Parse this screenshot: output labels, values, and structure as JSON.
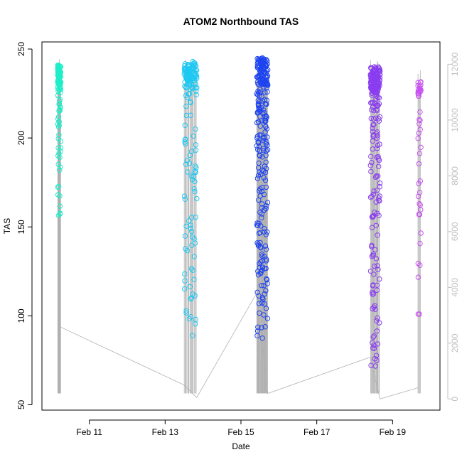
{
  "chart_data": {
    "type": "scatter",
    "title": "ATOM2 Northbound TAS",
    "xlabel": "Date",
    "ylabel": "TAS",
    "x_axis": {
      "type": "date",
      "range": [
        "2022-02-09T18:00",
        "2022-02-20T06:00"
      ],
      "ticks": [
        {
          "value": "2022-02-11T00:00",
          "label": "Feb 11"
        },
        {
          "value": "2022-02-13T00:00",
          "label": "Feb 13"
        },
        {
          "value": "2022-02-15T00:00",
          "label": "Feb 15"
        },
        {
          "value": "2022-02-17T00:00",
          "label": "Feb 17"
        },
        {
          "value": "2022-02-19T00:00",
          "label": "Feb 19"
        }
      ]
    },
    "y_axis_left": {
      "range": [
        47,
        254
      ],
      "ticks": [
        50,
        100,
        150,
        200,
        250
      ]
    },
    "y_axis_right": {
      "range": [
        -400,
        12800
      ],
      "ticks": [
        0,
        2000,
        4000,
        6000,
        8000,
        10000,
        12000
      ],
      "color": "#c0c0c0"
    },
    "point_series": [
      {
        "start": "2022-02-10T04:00",
        "end": "2022-02-10T06:00",
        "color": "#1eeec8",
        "count": 110,
        "dense_low": 228,
        "dense_high": 241,
        "sparse_low": 146,
        "sparse_high": 232,
        "dense_fraction": 0.55,
        "seed": 11
      },
      {
        "start": "2022-02-13T12:00",
        "end": "2022-02-13T20:00",
        "color": "#1ec8f2",
        "count": 160,
        "dense_low": 228,
        "dense_high": 243,
        "sparse_low": 77,
        "sparse_high": 230,
        "dense_fraction": 0.55,
        "seed": 23
      },
      {
        "start": "2022-02-15T10:00",
        "end": "2022-02-15T17:00",
        "color": "#1e44f0",
        "count": 280,
        "dense_low": 230,
        "dense_high": 245,
        "sparse_low": 80,
        "sparse_high": 232,
        "dense_fraction": 0.4,
        "seed": 37
      },
      {
        "start": "2022-02-18T10:00",
        "end": "2022-02-18T16:00",
        "color": "#8a3cf0",
        "count": 240,
        "dense_low": 225,
        "dense_high": 240,
        "sparse_low": 55,
        "sparse_high": 232,
        "dense_fraction": 0.45,
        "seed": 53
      },
      {
        "start": "2022-02-19T16:00",
        "end": "2022-02-19T18:00",
        "color": "#c850f0",
        "count": 45,
        "dense_low": 225,
        "dense_high": 233,
        "sparse_low": 92,
        "sparse_high": 228,
        "dense_fraction": 0.3,
        "seed": 71
      }
    ],
    "altitude_series": {
      "color": "#b0b0b0",
      "connectors": [
        {
          "x": "2022-02-10T05:00",
          "y": 2600
        },
        {
          "x": "2022-02-13T12:00",
          "y": 500
        },
        {
          "x": "2022-02-13T20:00",
          "y": 50
        },
        {
          "x": "2022-02-15T10:00",
          "y": 3800
        },
        {
          "x": "2022-02-15T17:00",
          "y": 200
        },
        {
          "x": "2022-02-18T10:00",
          "y": 1500
        },
        {
          "x": "2022-02-18T16:00",
          "y": 0
        },
        {
          "x": "2022-02-19T16:00",
          "y": 400
        }
      ],
      "flights": [
        {
          "start": "2022-02-10T04:00",
          "end": "2022-02-10T06:00",
          "count": 12
        },
        {
          "start": "2022-02-13T12:00",
          "end": "2022-02-13T20:00",
          "count": 14
        },
        {
          "start": "2022-02-15T10:00",
          "end": "2022-02-15T17:00",
          "count": 24
        },
        {
          "start": "2022-02-18T10:00",
          "end": "2022-02-18T16:00",
          "count": 14
        },
        {
          "start": "2022-02-19T16:00",
          "end": "2022-02-19T18:00",
          "count": 4
        }
      ],
      "flight_min": 200,
      "flight_max": 12200
    }
  }
}
